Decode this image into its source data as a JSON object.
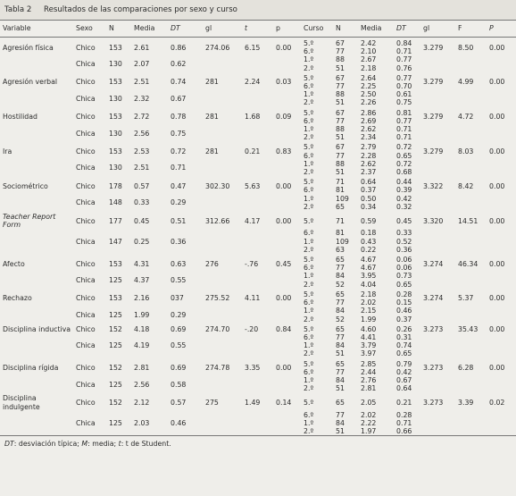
{
  "title": {
    "label": "Tabla 2",
    "text": "Resultados de las comparaciones por sexo y curso"
  },
  "table": {
    "columns": [
      "Variable",
      "Sexo",
      "N",
      "Media",
      "DT",
      "gl",
      "t",
      "p",
      "Curso",
      "N",
      "Media",
      "DT",
      "gl",
      "F",
      "P"
    ],
    "blocks": [
      {
        "variable": "Agresión física",
        "chico": {
          "sexo": "Chico",
          "n": "153",
          "media": "2.61",
          "dt": "0.86",
          "gl": "274.06",
          "t": "6.15",
          "p": "0.00",
          "cursos": [
            [
              "5.º",
              "67",
              "2.42",
              "0.84"
            ],
            [
              "6.º",
              "77",
              "2.10",
              "0.71"
            ]
          ]
        },
        "chica": {
          "sexo": "Chica",
          "n": "130",
          "media": "2.07",
          "dt": "0.62",
          "cursos": [
            [
              "1.º",
              "88",
              "2.67",
              "0.77"
            ],
            [
              "2.º",
              "51",
              "2.18",
              "0.76"
            ]
          ]
        },
        "anova": {
          "gl": "3.279",
          "F": "8.50",
          "P": "0.00"
        }
      },
      {
        "variable": "Agresión verbal",
        "chico": {
          "sexo": "Chico",
          "n": "153",
          "media": "2.51",
          "dt": "0.74",
          "gl": "281",
          "t": "2.24",
          "p": "0.03",
          "cursos": [
            [
              "5.º",
              "67",
              "2.64",
              "0.77"
            ],
            [
              "6.º",
              "77",
              "2.25",
              "0.70"
            ]
          ]
        },
        "chica": {
          "sexo": "Chica",
          "n": "130",
          "media": "2.32",
          "dt": "0.67",
          "cursos": [
            [
              "1.º",
              "88",
              "2.50",
              "0.61"
            ],
            [
              "2.º",
              "51",
              "2.26",
              "0.75"
            ]
          ]
        },
        "anova": {
          "gl": "3.279",
          "F": "4.99",
          "P": "0.00"
        }
      },
      {
        "variable": "Hostilidad",
        "chico": {
          "sexo": "Chico",
          "n": "153",
          "media": "2.72",
          "dt": "0.78",
          "gl": "281",
          "t": "1.68",
          "p": "0.09",
          "cursos": [
            [
              "5.º",
              "67",
              "2.86",
              "0.81"
            ],
            [
              "6.º",
              "77",
              "2.69",
              "0.77"
            ]
          ]
        },
        "chica": {
          "sexo": "Chica",
          "n": "130",
          "media": "2.56",
          "dt": "0.75",
          "cursos": [
            [
              "1.º",
              "88",
              "2.62",
              "0.71"
            ],
            [
              "2.º",
              "51",
              "2.34",
              "0.71"
            ]
          ]
        },
        "anova": {
          "gl": "3.279",
          "F": "4.72",
          "P": "0.00"
        }
      },
      {
        "variable": "Ira",
        "chico": {
          "sexo": "Chico",
          "n": "153",
          "media": "2.53",
          "dt": "0.72",
          "gl": "281",
          "t": "0.21",
          "p": "0.83",
          "cursos": [
            [
              "5.º",
              "67",
              "2.79",
              "0.72"
            ],
            [
              "6.º",
              "77",
              "2.28",
              "0.65"
            ]
          ]
        },
        "chica": {
          "sexo": "Chica",
          "n": "130",
          "media": "2.51",
          "dt": "0.71",
          "cursos": [
            [
              "1.º",
              "88",
              "2.62",
              "0.72"
            ],
            [
              "2.º",
              "51",
              "2.37",
              "0.68"
            ]
          ]
        },
        "anova": {
          "gl": "3.279",
          "F": "8.03",
          "P": "0.00"
        }
      },
      {
        "variable": "Sociométrico",
        "chico": {
          "sexo": "Chico",
          "n": "178",
          "media": "0.57",
          "dt": "0.47",
          "gl": "302.30",
          "t": "5.63",
          "p": "0.00",
          "cursos": [
            [
              "5.º",
              "71",
              "0.64",
              "0.44"
            ],
            [
              "6.º",
              "81",
              "0.37",
              "0.39"
            ]
          ]
        },
        "chica": {
          "sexo": "Chica",
          "n": "148",
          "media": "0.33",
          "dt": "0.29",
          "cursos": [
            [
              "1.º",
              "109",
              "0.50",
              "0.42"
            ],
            [
              "2.º",
              "65",
              "0.34",
              "0.32"
            ]
          ]
        },
        "anova": {
          "gl": "3.322",
          "F": "8.42",
          "P": "0.00"
        }
      },
      {
        "variable": "Teacher Report Form",
        "chico": {
          "sexo": "Chico",
          "n": "177",
          "media": "0.45",
          "dt": "0.51",
          "gl": "312.66",
          "t": "4.17",
          "p": "0.00",
          "cursos": [
            [
              "5.º",
              "71",
              "0.59",
              "0.45"
            ]
          ]
        },
        "chica": {
          "sexo": "Chica",
          "n": "147",
          "media": "0.25",
          "dt": "0.36",
          "cursos": [
            [
              "6.º",
              "81",
              "0.18",
              "0.33"
            ],
            [
              "1.º",
              "109",
              "0.43",
              "0.52"
            ],
            [
              "2.º",
              "63",
              "0.22",
              "0.36"
            ]
          ]
        },
        "anova": {
          "gl": "3.320",
          "F": "14.51",
          "P": "0.00"
        }
      },
      {
        "variable": "Afecto",
        "chico": {
          "sexo": "Chico",
          "n": "153",
          "media": "4.31",
          "dt": "0.63",
          "gl": "276",
          "t": "-.76",
          "p": "0.45",
          "cursos": [
            [
              "5.º",
              "65",
              "4.67",
              "0.06"
            ],
            [
              "6.º",
              "77",
              "4.67",
              "0.06"
            ]
          ]
        },
        "chica": {
          "sexo": "Chica",
          "n": "125",
          "media": "4.37",
          "dt": "0.55",
          "cursos": [
            [
              "1.º",
              "84",
              "3.95",
              "0.73"
            ],
            [
              "2.º",
              "52",
              "4.04",
              "0.65"
            ]
          ]
        },
        "anova": {
          "gl": "3.274",
          "F": "46.34",
          "P": "0.00"
        }
      },
      {
        "variable": "Rechazo",
        "chico": {
          "sexo": "Chico",
          "n": "153",
          "media": "2.16",
          "dt": "037",
          "gl": "275.52",
          "t": "4.11",
          "p": "0.00",
          "cursos": [
            [
              "5.º",
              "65",
              "2.18",
              "0.28"
            ],
            [
              "6.º",
              "77",
              "2.02",
              "0.15"
            ]
          ]
        },
        "chica": {
          "sexo": "Chica",
          "n": "125",
          "media": "1.99",
          "dt": "0.29",
          "cursos": [
            [
              "1.º",
              "84",
              "2.15",
              "0.46"
            ],
            [
              "2.º",
              "52",
              "1.99",
              "0.37"
            ]
          ]
        },
        "anova": {
          "gl": "3.274",
          "F": "5.37",
          "P": "0.00"
        }
      },
      {
        "variable": "Disciplina inductiva",
        "chico": {
          "sexo": "Chico",
          "n": "152",
          "media": "4.18",
          "dt": "0.69",
          "gl": "274.70",
          "t": "-.20",
          "p": "0.84",
          "cursos": [
            [
              "5.º",
              "65",
              "4.60",
              "0.26"
            ]
          ]
        },
        "chica": {
          "sexo": "Chica",
          "n": "125",
          "media": "4.19",
          "dt": "0.55",
          "cursos": [
            [
              "6.º",
              "77",
              "4.41",
              "0.31"
            ],
            [
              "1.º",
              "84",
              "3.79",
              "0.74"
            ],
            [
              "2.º",
              "51",
              "3.97",
              "0.65"
            ]
          ]
        },
        "anova": {
          "gl": "3.273",
          "F": "35.43",
          "P": "0.00"
        }
      },
      {
        "variable": "Disciplina rígida",
        "chico": {
          "sexo": "Chico",
          "n": "152",
          "media": "2.81",
          "dt": "0.69",
          "gl": "274.78",
          "t": "3.35",
          "p": "0.00",
          "cursos": [
            [
              "5.º",
              "65",
              "2.85",
              "0.79"
            ],
            [
              "6.º",
              "77",
              "2.44",
              "0.42"
            ]
          ]
        },
        "chica": {
          "sexo": "Chica",
          "n": "125",
          "media": "2.56",
          "dt": "0.58",
          "cursos": [
            [
              "1.º",
              "84",
              "2.76",
              "0.67"
            ],
            [
              "2.º",
              "51",
              "2.81",
              "0.64"
            ]
          ]
        },
        "anova": {
          "gl": "3.273",
          "F": "6.28",
          "P": "0.00"
        }
      },
      {
        "variable": "Disciplina indulgente",
        "chico": {
          "sexo": "Chico",
          "n": "152",
          "media": "2.12",
          "dt": "0.57",
          "gl": "275",
          "t": "1.49",
          "p": "0.14",
          "cursos": [
            [
              "5.º",
              "65",
              "2.05",
              "0.21"
            ]
          ]
        },
        "chica": {
          "sexo": "Chica",
          "n": "125",
          "media": "2.03",
          "dt": "0.46",
          "cursos": [
            [
              "6.º",
              "77",
              "2.02",
              "0.28"
            ],
            [
              "1.º",
              "84",
              "2.22",
              "0.71"
            ],
            [
              "2.º",
              "51",
              "1.97",
              "0.66"
            ]
          ]
        },
        "anova": {
          "gl": "3.273",
          "F": "3.39",
          "P": "0.02"
        }
      }
    ]
  },
  "footer": [
    [
      "DT",
      ": desviación típica; "
    ],
    [
      "M",
      ": media; "
    ],
    [
      "t",
      ": t de Student."
    ]
  ]
}
